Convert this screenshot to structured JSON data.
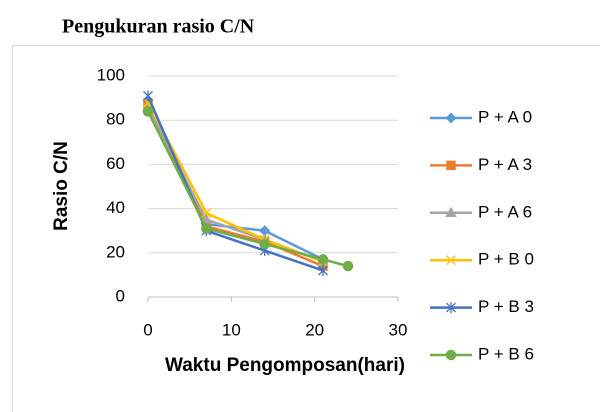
{
  "chart_data": {
    "type": "line",
    "title": "Pengukuran rasio C/N",
    "x_label": "Waktu Pengomposan(hari)",
    "y_label": "Rasio C/N",
    "x": [
      0,
      7,
      14,
      21,
      24
    ],
    "series": [
      {
        "name": "P + A 0",
        "color": "#5b9bd5",
        "marker": "diamond",
        "values": [
          89,
          33,
          30,
          17,
          null
        ]
      },
      {
        "name": "P + A 3",
        "color": "#ed7d31",
        "marker": "square",
        "values": [
          87,
          32,
          25,
          14,
          null
        ]
      },
      {
        "name": "P + A 6",
        "color": "#a5a5a5",
        "marker": "triangle",
        "values": [
          86,
          35,
          26,
          16,
          null
        ]
      },
      {
        "name": "P + B 0",
        "color": "#ffc000",
        "marker": "x",
        "values": [
          88,
          38,
          26,
          16,
          null
        ]
      },
      {
        "name": "P + B 3",
        "color": "#4472c4",
        "marker": "star",
        "values": [
          91,
          30,
          21,
          12,
          null
        ]
      },
      {
        "name": "P + B 6",
        "color": "#70ad47",
        "marker": "circle",
        "values": [
          84,
          31,
          24,
          17,
          14
        ]
      }
    ],
    "xlim": [
      0,
      30
    ],
    "xticks": [
      0,
      10,
      20,
      30
    ],
    "ylim": [
      0,
      100
    ],
    "yticks": [
      0,
      20,
      40,
      60,
      80,
      100
    ],
    "grid": true
  }
}
